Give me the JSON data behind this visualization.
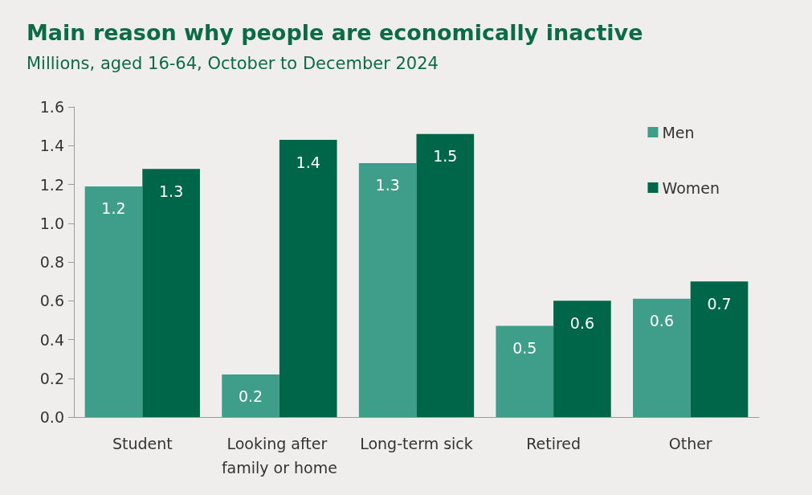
{
  "chart_data": {
    "type": "bar",
    "title": "Main reason why people are economically inactive",
    "subtitle": "Millions, aged 16-64, October to December 2024",
    "categories": [
      "Student",
      "Looking after family or home",
      "Long-term sick",
      "Retired",
      "Other"
    ],
    "series": [
      {
        "name": "Men",
        "color": "#3f9e89",
        "values": [
          1.19,
          0.22,
          1.31,
          0.47,
          0.61
        ],
        "value_labels": [
          "1.2",
          "0.2",
          "1.3",
          "0.5",
          "0.6"
        ]
      },
      {
        "name": "Women",
        "color": "#00664a",
        "values": [
          1.28,
          1.43,
          1.46,
          0.6,
          0.7
        ],
        "value_labels": [
          "1.3",
          "1.4",
          "1.5",
          "0.6",
          "0.7"
        ]
      }
    ],
    "ylim": [
      0,
      1.6
    ],
    "yticks": [
      {
        "value": 0,
        "label": "0.0"
      },
      0.2,
      0.4,
      0.6,
      0.8,
      {
        "value": 1,
        "label": "1.0"
      },
      1.2,
      1.4,
      1.6
    ],
    "grid": false,
    "legend": "top right"
  }
}
